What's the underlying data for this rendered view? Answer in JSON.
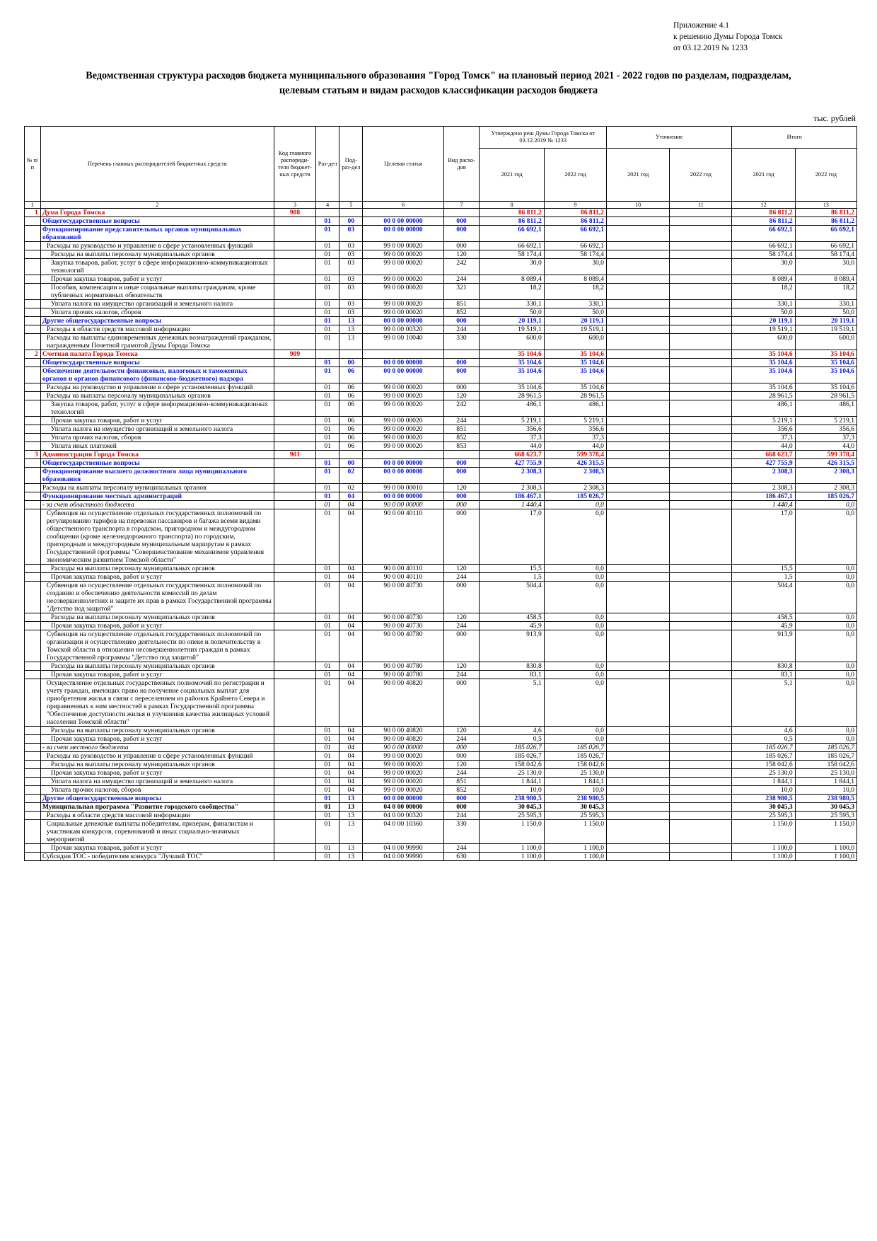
{
  "appendix": {
    "line1": "Приложение 4.1",
    "line2": "к решению Думы Города Томск",
    "line3": "от 03.12.2019 № 1233"
  },
  "title": {
    "line1": "Ведомственная структура расходов бюджета муниципального образования \"Город Томск\" на плановый период 2021 - 2022 годов по разделам, подразделам,",
    "line2": "целевым статьям и видам расходов классификации расходов бюджета"
  },
  "units": "тыс. рублей",
  "header": {
    "num": "№ п/п",
    "name": "Перечень главных распорядителей бюджетных средств",
    "code": "Код главного распоряди-теля бюджет-ных средств",
    "razdel": "Раз-дел",
    "podrazdel": "Под-раз-дел",
    "target": "Целевая статья",
    "vid": "Вид расхо-дов",
    "approved": "Утверждено реш Думы Города Томска от 03.12.2019 № 1233",
    "changes": "Уточнение",
    "total": "Итого",
    "y2021a": "2021 год",
    "y2022a": "2022 год",
    "y2021b": "2021 год",
    "y2022b": "2022 год",
    "y2021c": "2021 год",
    "y2022c": "2022 год",
    "colnums": [
      "1",
      "2",
      "3",
      "4",
      "5",
      "6",
      "7",
      "8",
      "9",
      "10",
      "11",
      "12",
      "13"
    ]
  },
  "rows": [
    {
      "lvl": "l0",
      "n": "1",
      "name": "Дума Города Томска",
      "code": "908",
      "r": "",
      "p": "",
      "t": "",
      "v": "",
      "a1": "86 811,2",
      "a2": "86 811,2",
      "c1": "",
      "c2": "",
      "t1": "86 811,2",
      "t2": "86 811,2"
    },
    {
      "lvl": "l1",
      "name": "Общегосударственные вопросы",
      "r": "01",
      "p": "00",
      "t": "00 0 00 00000",
      "v": "000",
      "a1": "86 811,2",
      "a2": "86 811,2",
      "t1": "86 811,2",
      "t2": "86 811,2"
    },
    {
      "lvl": "l2",
      "name": "Функционирование представительных органов муниципальных образований",
      "r": "01",
      "p": "03",
      "t": "00 0 00 00000",
      "v": "000",
      "a1": "66 692,1",
      "a2": "66 692,1",
      "t1": "66 692,1",
      "t2": "66 692,1"
    },
    {
      "lvl": "n",
      "ind": 1,
      "name": "Расходы на руководство и управление в сфере установленных функций",
      "r": "01",
      "p": "03",
      "t": "99 0 00 00020",
      "v": "000",
      "a1": "66 692,1",
      "a2": "66 692,1",
      "t1": "66 692,1",
      "t2": "66 692,1"
    },
    {
      "lvl": "n",
      "ind": 2,
      "name": "Расходы на выплаты персоналу муниципальных органов",
      "r": "01",
      "p": "03",
      "t": "99 0 00 00020",
      "v": "120",
      "a1": "58 174,4",
      "a2": "58 174,4",
      "t1": "58 174,4",
      "t2": "58 174,4"
    },
    {
      "lvl": "n",
      "ind": 2,
      "name": "Закупка товаров, работ, услуг в сфере информационно-коммуникационных технологий",
      "r": "01",
      "p": "03",
      "t": "99 0 00 00020",
      "v": "242",
      "a1": "30,0",
      "a2": "30,0",
      "t1": "30,0",
      "t2": "30,0"
    },
    {
      "lvl": "n",
      "ind": 2,
      "name": "Прочая закупка товаров, работ и услуг",
      "r": "01",
      "p": "03",
      "t": "99 0 00 00020",
      "v": "244",
      "a1": "8 089,4",
      "a2": "8 089,4",
      "t1": "8 089,4",
      "t2": "8 089,4"
    },
    {
      "lvl": "n",
      "ind": 2,
      "name": "Пособия, компенсации и иные социальные выплаты гражданам, кроме публичных нормативных обязательств",
      "r": "01",
      "p": "03",
      "t": "99 0 00 00020",
      "v": "321",
      "a1": "18,2",
      "a2": "18,2",
      "t1": "18,2",
      "t2": "18,2"
    },
    {
      "lvl": "n",
      "ind": 2,
      "name": "Уплата налога на имущество организаций и земельного налога",
      "r": "01",
      "p": "03",
      "t": "99 0 00 00020",
      "v": "851",
      "a1": "330,1",
      "a2": "330,1",
      "t1": "330,1",
      "t2": "330,1"
    },
    {
      "lvl": "n",
      "ind": 2,
      "name": "Уплата прочих налогов, сборов",
      "r": "01",
      "p": "03",
      "t": "99 0 00 00020",
      "v": "852",
      "a1": "50,0",
      "a2": "50,0",
      "t1": "50,0",
      "t2": "50,0"
    },
    {
      "lvl": "l2",
      "name": "Другие общегосударственные вопросы",
      "r": "01",
      "p": "13",
      "t": "00 0 00 00000",
      "v": "000",
      "a1": "20 119,1",
      "a2": "20 119,1",
      "t1": "20 119,1",
      "t2": "20 119,1"
    },
    {
      "lvl": "n",
      "ind": 1,
      "name": "Расходы в области средств массовой информации",
      "r": "01",
      "p": "13",
      "t": "99 0 00 00320",
      "v": "244",
      "a1": "19 519,1",
      "a2": "19 519,1",
      "t1": "19 519,1",
      "t2": "19 519,1"
    },
    {
      "lvl": "n",
      "ind": 1,
      "name": "Расходы на выплаты единовременных денежных вознаграждений гражданам, награжденным Почетной грамотой Думы Города Томска",
      "r": "01",
      "p": "13",
      "t": "99 0 00 10040",
      "v": "330",
      "a1": "600,0",
      "a2": "600,0",
      "t1": "600,0",
      "t2": "600,0"
    },
    {
      "lvl": "l0",
      "n": "2",
      "name": "Счетная палата Города Томска",
      "code": "909",
      "a1": "35 104,6",
      "a2": "35 104,6",
      "t1": "35 104,6",
      "t2": "35 104,6"
    },
    {
      "lvl": "l1",
      "name": "Общегосударственные вопросы",
      "r": "01",
      "p": "00",
      "t": "00 0 00 00000",
      "v": "000",
      "a1": "35 104,6",
      "a2": "35 104,6",
      "t1": "35 104,6",
      "t2": "35 104,6"
    },
    {
      "lvl": "l2",
      "name": "Обеспечение деятельности финансовых, налоговых и таможенных органов и органов финансового (финансово-бюджетного) надзора",
      "r": "01",
      "p": "06",
      "t": "00 0 00 00000",
      "v": "000",
      "a1": "35 104,6",
      "a2": "35 104,6",
      "t1": "35 104,6",
      "t2": "35 104,6"
    },
    {
      "lvl": "n",
      "ind": 1,
      "name": "Расходы на руководство и управление в сфере установленных функций",
      "r": "01",
      "p": "06",
      "t": "99 0 00 00020",
      "v": "000",
      "a1": "35 104,6",
      "a2": "35 104,6",
      "t1": "35 104,6",
      "t2": "35 104,6"
    },
    {
      "lvl": "n",
      "ind": 1,
      "name": "Расходы на выплаты персоналу муниципальных органов",
      "r": "01",
      "p": "06",
      "t": "99 0 00 00020",
      "v": "120",
      "a1": "28 961,5",
      "a2": "28 961,5",
      "t1": "28 961,5",
      "t2": "28 961,5"
    },
    {
      "lvl": "n",
      "ind": 2,
      "name": "Закупка товаров, работ, услуг в сфере информационно-коммуникационных технологий",
      "r": "01",
      "p": "06",
      "t": "99 0 00 00020",
      "v": "242",
      "a1": "486,1",
      "a2": "486,1",
      "t1": "486,1",
      "t2": "486,1"
    },
    {
      "lvl": "n",
      "ind": 2,
      "name": "Прочая закупка товаров, работ и услуг",
      "r": "01",
      "p": "06",
      "t": "99 0 00 00020",
      "v": "244",
      "a1": "5 219,1",
      "a2": "5 219,1",
      "t1": "5 219,1",
      "t2": "5 219,1"
    },
    {
      "lvl": "n",
      "ind": 2,
      "name": "Уплата налога на имущество организаций и земельного налога",
      "r": "01",
      "p": "06",
      "t": "99 0 00 00020",
      "v": "851",
      "a1": "356,6",
      "a2": "356,6",
      "t1": "356,6",
      "t2": "356,6"
    },
    {
      "lvl": "n",
      "ind": 2,
      "name": "Уплата прочих налогов, сборов",
      "r": "01",
      "p": "06",
      "t": "99 0 00 00020",
      "v": "852",
      "a1": "37,3",
      "a2": "37,3",
      "t1": "37,3",
      "t2": "37,3"
    },
    {
      "lvl": "n",
      "ind": 2,
      "name": "Уплата иных платежей",
      "r": "01",
      "p": "06",
      "t": "99 0 00 00020",
      "v": "853",
      "a1": "44,0",
      "a2": "44,0",
      "t1": "44,0",
      "t2": "44,0"
    },
    {
      "lvl": "l0",
      "n": "3",
      "name": "Администрация Города Томска",
      "code": "901",
      "a1": "668 623,7",
      "a2": "599 378,4",
      "t1": "668 623,7",
      "t2": "599 378,4"
    },
    {
      "lvl": "l1",
      "name": "Общегосударственные вопросы",
      "r": "01",
      "p": "00",
      "t": "00 0 00 00000",
      "v": "000",
      "a1": "427 755,9",
      "a2": "426 315,5",
      "t1": "427 755,9",
      "t2": "426 315,5"
    },
    {
      "lvl": "l2",
      "name": "Функционирование высшего должностного лица муниципального образования",
      "r": "01",
      "p": "02",
      "t": "00 0 00 00000",
      "v": "000",
      "a1": "2 308,3",
      "a2": "2 308,3",
      "t1": "2 308,3",
      "t2": "2 308,3"
    },
    {
      "lvl": "n",
      "name": "Расходы на выплаты персоналу муниципальных органов",
      "r": "01",
      "p": "02",
      "t": "99 0 00 00010",
      "v": "120",
      "a1": "2 308,3",
      "a2": "2 308,3",
      "t1": "2 308,3",
      "t2": "2 308,3"
    },
    {
      "lvl": "l2",
      "name": "Функционирование местных администраций",
      "r": "01",
      "p": "04",
      "t": "00 0 00 00000",
      "v": "000",
      "a1": "186 467,1",
      "a2": "185 026,7",
      "t1": "186 467,1",
      "t2": "185 026,7"
    },
    {
      "lvl": "it",
      "name": " - за счет областного бюджета",
      "r": "01",
      "p": "04",
      "t": "90 0 00 00000",
      "v": "000",
      "a1": "1 440,4",
      "a2": "0,0",
      "t1": "1 440,4",
      "t2": "0,0"
    },
    {
      "lvl": "n",
      "ind": 1,
      "name": "Субвенция на осуществление отдельных государственных полномочий по регулированию тарифов на перевозки пассажиров и багажа всеми видами общественного транспорта в городском, пригородном и междугородном сообщении (кроме железнодорожного транспорта) по городским, пригородным и междугородным муниципальным маршрутам в рамках Государственной программы \"Совершенствование механизмов управления экономическим развитием Томской области\"",
      "r": "01",
      "p": "04",
      "t": "90 0 00 40110",
      "v": "000",
      "a1": "17,0",
      "a2": "0,0",
      "t1": "17,0",
      "t2": "0,0"
    },
    {
      "lvl": "n",
      "ind": 2,
      "name": "Расходы на выплаты персоналу муниципальных органов",
      "r": "01",
      "p": "04",
      "t": "90 0 00 40110",
      "v": "120",
      "a1": "15,5",
      "a2": "0,0",
      "t1": "15,5",
      "t2": "0,0"
    },
    {
      "lvl": "n",
      "ind": 2,
      "name": "Прочая закупка товаров, работ и услуг",
      "r": "01",
      "p": "04",
      "t": "90 0 00 40110",
      "v": "244",
      "a1": "1,5",
      "a2": "0,0",
      "t1": "1,5",
      "t2": "0,0"
    },
    {
      "lvl": "n",
      "ind": 1,
      "name": "Субвенция на осуществление отдельных государственных полномочий по созданию и обеспечению деятельности комиссий по делам несовершеннолетних и защите их прав в рамках Государственной программы \"Детство под защитой\"",
      "r": "01",
      "p": "04",
      "t": "90 0 00 40730",
      "v": "000",
      "a1": "504,4",
      "a2": "0,0",
      "t1": "504,4",
      "t2": "0,0"
    },
    {
      "lvl": "n",
      "ind": 2,
      "name": "Расходы на выплаты персоналу муниципальных органов",
      "r": "01",
      "p": "04",
      "t": "90 0 00 40730",
      "v": "120",
      "a1": "458,5",
      "a2": "0,0",
      "t1": "458,5",
      "t2": "0,0"
    },
    {
      "lvl": "n",
      "ind": 2,
      "name": "Прочая закупка товаров, работ и услуг",
      "r": "01",
      "p": "04",
      "t": "90 0 00 40730",
      "v": "244",
      "a1": "45,9",
      "a2": "0,0",
      "t1": "45,9",
      "t2": "0,0"
    },
    {
      "lvl": "n",
      "ind": 1,
      "name": "Субвенция на осуществление отдельных государственных полномочий по организации и осуществлению деятельности по опеке и попечительству в Томской области в отношении несовершеннолетних граждан в рамках Государственной программы \"Детство под защитой\"",
      "r": "01",
      "p": "04",
      "t": "90 0 00 40780",
      "v": "000",
      "a1": "913,9",
      "a2": "0,0",
      "t1": "913,9",
      "t2": "0,0"
    },
    {
      "lvl": "n",
      "ind": 2,
      "name": "Расходы на выплаты персоналу муниципальных органов",
      "r": "01",
      "p": "04",
      "t": "90 0 00 40780",
      "v": "120",
      "a1": "830,8",
      "a2": "0,0",
      "t1": "830,8",
      "t2": "0,0"
    },
    {
      "lvl": "n",
      "ind": 2,
      "name": "Прочая закупка товаров, работ и услуг",
      "r": "01",
      "p": "04",
      "t": "90 0 00 40780",
      "v": "244",
      "a1": "83,1",
      "a2": "0,0",
      "t1": "83,1",
      "t2": "0,0"
    },
    {
      "lvl": "n",
      "ind": 1,
      "name": "Осуществление отдельных государственных полномочий по регистрации и учету граждан, имеющих право на получение социальных выплат для приобретения жилья в связи с переселением из районов Крайнего Севера и приравненных к ним местностей в рамках Государственной программы \"Обеспечение доступности жилья и улучшения качества жилищных условий населения Томской области\"",
      "r": "01",
      "p": "04",
      "t": "90 0 00 40820",
      "v": "000",
      "a1": "5,1",
      "a2": "0,0",
      "t1": "5,1",
      "t2": "0,0"
    },
    {
      "lvl": "n",
      "ind": 2,
      "name": "Расходы на выплаты персоналу муниципальных органов",
      "r": "01",
      "p": "04",
      "t": "90 0 00 40820",
      "v": "120",
      "a1": "4,6",
      "a2": "0,0",
      "t1": "4,6",
      "t2": "0,0"
    },
    {
      "lvl": "n",
      "ind": 2,
      "name": "Прочая закупка товаров, работ и услуг",
      "r": "01",
      "p": "04",
      "t": "90 0 00 40820",
      "v": "244",
      "a1": "0,5",
      "a2": "0,0",
      "t1": "0,5",
      "t2": "0,0"
    },
    {
      "lvl": "it",
      "name": " - за счет местного бюджета",
      "r": "01",
      "p": "04",
      "t": "90 0 00 00000",
      "v": "000",
      "a1": "185 026,7",
      "a2": "185 026,7",
      "t1": "185 026,7",
      "t2": "185 026,7"
    },
    {
      "lvl": "n",
      "ind": 1,
      "name": "Расходы на руководство и управление в сфере установленных функций",
      "r": "01",
      "p": "04",
      "t": "99 0 00 00020",
      "v": "000",
      "a1": "185 026,7",
      "a2": "185 026,7",
      "t1": "185 026,7",
      "t2": "185 026,7"
    },
    {
      "lvl": "n",
      "ind": 2,
      "name": "Расходы на выплаты персоналу муниципальных органов",
      "r": "01",
      "p": "04",
      "t": "99 0 00 00020",
      "v": "120",
      "a1": "158 042,6",
      "a2": "158 042,6",
      "t1": "158 042,6",
      "t2": "158 042,6"
    },
    {
      "lvl": "n",
      "ind": 2,
      "name": "Прочая закупка товаров, работ и услуг",
      "r": "01",
      "p": "04",
      "t": "99 0 00 00020",
      "v": "244",
      "a1": "25 130,0",
      "a2": "25 130,0",
      "t1": "25 130,0",
      "t2": "25 130,0"
    },
    {
      "lvl": "n",
      "ind": 2,
      "name": "Уплата налога на имущество организаций и земельного налога",
      "r": "01",
      "p": "04",
      "t": "99 0 00 00020",
      "v": "851",
      "a1": "1 844,1",
      "a2": "1 844,1",
      "t1": "1 844,1",
      "t2": "1 844,1"
    },
    {
      "lvl": "n",
      "ind": 2,
      "name": "Уплата прочих налогов, сборов",
      "r": "01",
      "p": "04",
      "t": "99 0 00 00020",
      "v": "852",
      "a1": "10,0",
      "a2": "10,0",
      "t1": "10,0",
      "t2": "10,0"
    },
    {
      "lvl": "l2",
      "name": "Другие общегосударственные вопросы",
      "r": "01",
      "p": "13",
      "t": "00 0 00 00000",
      "v": "000",
      "a1": "238 980,5",
      "a2": "238 980,5",
      "t1": "238 980,5",
      "t2": "238 980,5"
    },
    {
      "lvl": "l3",
      "name": "Муниципальная программа \"Развитие городского сообщества\"",
      "r": "01",
      "p": "13",
      "t": "04 0 00 00000",
      "v": "000",
      "a1": "30 045,3",
      "a2": "30 045,3",
      "t1": "30 045,3",
      "t2": "30 045,3"
    },
    {
      "lvl": "n",
      "ind": 1,
      "name": "Расходы в области средств массовой информации",
      "r": "01",
      "p": "13",
      "t": "04 0 00 00320",
      "v": "244",
      "a1": "25 595,3",
      "a2": "25 595,3",
      "t1": "25 595,3",
      "t2": "25 595,3"
    },
    {
      "lvl": "n",
      "ind": 1,
      "name": "Социальные денежные выплаты победителям, призерам, финалистам и участникам конкурсов, соревнований и иных социально-значимых мероприятий",
      "r": "01",
      "p": "13",
      "t": "04 0 00 10360",
      "v": "330",
      "a1": "1 150,0",
      "a2": "1 150,0",
      "t1": "1 150,0",
      "t2": "1 150,0"
    },
    {
      "lvl": "n",
      "ind": 2,
      "name": "Прочая закупка товаров, работ и услуг",
      "r": "01",
      "p": "13",
      "t": "04 0 00 99990",
      "v": "244",
      "a1": "1 100,0",
      "a2": "1 100,0",
      "t1": "1 100,0",
      "t2": "1 100,0"
    },
    {
      "lvl": "n",
      "name": "Субсидии ТОС - победителям конкурса \"Лучший ТОС\"",
      "r": "01",
      "p": "13",
      "t": "04 0 00 99990",
      "v": "630",
      "a1": "1 100,0",
      "a2": "1 100,0",
      "t1": "1 100,0",
      "t2": "1 100,0"
    }
  ]
}
